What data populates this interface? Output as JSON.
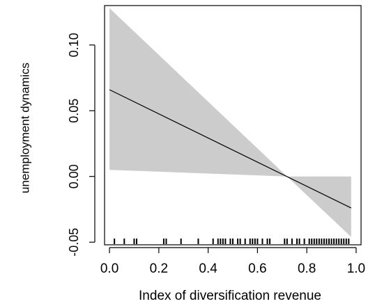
{
  "chart_data": {
    "type": "line",
    "title": "",
    "xlabel": "Index of diversification revenue",
    "ylabel": "unemployment dynamics",
    "xlim": [
      -0.02,
      1.02
    ],
    "ylim": [
      -0.052,
      0.13
    ],
    "x_ticks": [
      0.0,
      0.2,
      0.4,
      0.6,
      0.8,
      1.0
    ],
    "x_tick_labels": [
      "0.0",
      "0.2",
      "0.4",
      "0.6",
      "0.8",
      "1.0"
    ],
    "y_ticks": [
      -0.05,
      0.0,
      0.05,
      0.1
    ],
    "y_tick_labels": [
      "-0.05",
      "0.00",
      "0.05",
      "0.10"
    ],
    "grid": false,
    "legend": "none",
    "series": [
      {
        "x": [
          0.0,
          0.98
        ],
        "y": [
          0.066,
          -0.024
        ]
      }
    ],
    "confidence_band": {
      "x": [
        0.0,
        0.72,
        0.98
      ],
      "upper": [
        0.128,
        0.0,
        0.0
      ],
      "lower": [
        0.005,
        0.0,
        -0.046
      ]
    },
    "rug": [
      0.02,
      0.06,
      0.1,
      0.11,
      0.22,
      0.23,
      0.29,
      0.36,
      0.42,
      0.44,
      0.45,
      0.46,
      0.47,
      0.49,
      0.5,
      0.52,
      0.53,
      0.55,
      0.57,
      0.58,
      0.59,
      0.6,
      0.62,
      0.64,
      0.65,
      0.71,
      0.72,
      0.74,
      0.76,
      0.77,
      0.79,
      0.81,
      0.82,
      0.83,
      0.84,
      0.85,
      0.86,
      0.87,
      0.88,
      0.89,
      0.9,
      0.91,
      0.92,
      0.93,
      0.94,
      0.95,
      0.96,
      0.97
    ],
    "colors": {
      "band": "#cccccc",
      "line": "#000000",
      "axes": "#000000",
      "background": "#ffffff"
    }
  }
}
